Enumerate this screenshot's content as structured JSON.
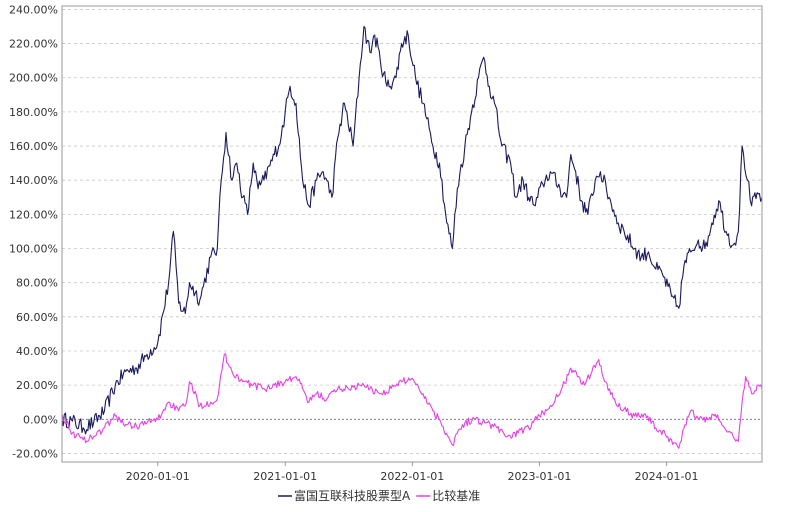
{
  "chart_data": {
    "type": "line",
    "title": "",
    "xlabel": "",
    "ylabel": "",
    "x_range": [
      "2019-04-01",
      "2024-10-01"
    ],
    "ylim": [
      -25,
      242
    ],
    "y_ticks": [
      "-20.00%",
      "0.00%",
      "20.00%",
      "40.00%",
      "60.00%",
      "80.00%",
      "100.00%",
      "120.00%",
      "140.00%",
      "160.00%",
      "180.00%",
      "200.00%",
      "220.00%",
      "240.00%"
    ],
    "x_ticks": [
      "2020-01-01",
      "2021-01-01",
      "2022-01-01",
      "2023-01-01",
      "2024-01-01"
    ],
    "grid": true,
    "legend_position": "bottom-center",
    "series": [
      {
        "name": "富国互联科技股票型A",
        "color": "#1a1a5e",
        "points": [
          [
            "2019-04-01",
            0
          ],
          [
            "2019-05-01",
            -1
          ],
          [
            "2019-06-01",
            -5
          ],
          [
            "2019-07-01",
            -2
          ],
          [
            "2019-08-01",
            5
          ],
          [
            "2019-09-01",
            20
          ],
          [
            "2019-10-01",
            28
          ],
          [
            "2019-11-01",
            30
          ],
          [
            "2019-12-01",
            38
          ],
          [
            "2020-01-01",
            45
          ],
          [
            "2020-02-01",
            80
          ],
          [
            "2020-02-15",
            110
          ],
          [
            "2020-03-01",
            68
          ],
          [
            "2020-03-20",
            62
          ],
          [
            "2020-04-01",
            80
          ],
          [
            "2020-05-01",
            70
          ],
          [
            "2020-06-01",
            95
          ],
          [
            "2020-06-20",
            100
          ],
          [
            "2020-07-01",
            140
          ],
          [
            "2020-07-15",
            168
          ],
          [
            "2020-08-01",
            140
          ],
          [
            "2020-08-15",
            150
          ],
          [
            "2020-09-01",
            130
          ],
          [
            "2020-09-15",
            120
          ],
          [
            "2020-10-01",
            150
          ],
          [
            "2020-10-15",
            135
          ],
          [
            "2020-11-01",
            140
          ],
          [
            "2020-12-01",
            155
          ],
          [
            "2020-12-20",
            165
          ],
          [
            "2021-01-01",
            180
          ],
          [
            "2021-01-15",
            195
          ],
          [
            "2021-02-01",
            185
          ],
          [
            "2021-02-20",
            140
          ],
          [
            "2021-03-10",
            125
          ],
          [
            "2021-04-01",
            140
          ],
          [
            "2021-04-20",
            145
          ],
          [
            "2021-05-15",
            130
          ],
          [
            "2021-06-01",
            165
          ],
          [
            "2021-06-20",
            185
          ],
          [
            "2021-07-15",
            160
          ],
          [
            "2021-08-01",
            200
          ],
          [
            "2021-08-15",
            230
          ],
          [
            "2021-09-01",
            215
          ],
          [
            "2021-09-15",
            225
          ],
          [
            "2021-10-01",
            210
          ],
          [
            "2021-10-20",
            195
          ],
          [
            "2021-11-15",
            200
          ],
          [
            "2021-12-01",
            220
          ],
          [
            "2021-12-20",
            225
          ],
          [
            "2022-01-10",
            200
          ],
          [
            "2022-02-01",
            185
          ],
          [
            "2022-03-01",
            160
          ],
          [
            "2022-03-20",
            150
          ],
          [
            "2022-04-10",
            115
          ],
          [
            "2022-04-26",
            100
          ],
          [
            "2022-05-10",
            135
          ],
          [
            "2022-06-01",
            160
          ],
          [
            "2022-06-20",
            180
          ],
          [
            "2022-07-10",
            200
          ],
          [
            "2022-07-25",
            212
          ],
          [
            "2022-08-10",
            195
          ],
          [
            "2022-08-25",
            185
          ],
          [
            "2022-09-15",
            160
          ],
          [
            "2022-10-10",
            150
          ],
          [
            "2022-10-25",
            130
          ],
          [
            "2022-11-15",
            140
          ],
          [
            "2022-12-01",
            130
          ],
          [
            "2022-12-20",
            125
          ],
          [
            "2023-01-10",
            138
          ],
          [
            "2023-02-01",
            145
          ],
          [
            "2023-03-01",
            135
          ],
          [
            "2023-03-20",
            130
          ],
          [
            "2023-04-01",
            155
          ],
          [
            "2023-04-15",
            145
          ],
          [
            "2023-05-01",
            128
          ],
          [
            "2023-05-20",
            120
          ],
          [
            "2023-06-10",
            140
          ],
          [
            "2023-06-25",
            145
          ],
          [
            "2023-07-20",
            130
          ],
          [
            "2023-08-15",
            115
          ],
          [
            "2023-09-01",
            110
          ],
          [
            "2023-10-01",
            100
          ],
          [
            "2023-10-20",
            95
          ],
          [
            "2023-11-10",
            98
          ],
          [
            "2023-12-01",
            88
          ],
          [
            "2023-12-20",
            85
          ],
          [
            "2024-01-15",
            72
          ],
          [
            "2024-02-05",
            65
          ],
          [
            "2024-02-20",
            90
          ],
          [
            "2024-03-10",
            98
          ],
          [
            "2024-04-01",
            105
          ],
          [
            "2024-04-20",
            100
          ],
          [
            "2024-05-10",
            115
          ],
          [
            "2024-05-30",
            128
          ],
          [
            "2024-06-20",
            110
          ],
          [
            "2024-07-10",
            102
          ],
          [
            "2024-07-25",
            110
          ],
          [
            "2024-08-05",
            160
          ],
          [
            "2024-08-20",
            140
          ],
          [
            "2024-09-01",
            125
          ],
          [
            "2024-09-20",
            132
          ],
          [
            "2024-10-01",
            130
          ]
        ]
      },
      {
        "name": "比较基准",
        "color": "#e83ee8",
        "points": [
          [
            "2019-04-01",
            3
          ],
          [
            "2019-05-01",
            -8
          ],
          [
            "2019-06-01",
            -12
          ],
          [
            "2019-07-01",
            -10
          ],
          [
            "2019-08-01",
            -5
          ],
          [
            "2019-09-01",
            2
          ],
          [
            "2019-10-01",
            -3
          ],
          [
            "2019-11-01",
            -4
          ],
          [
            "2019-12-01",
            -2
          ],
          [
            "2020-01-01",
            0
          ],
          [
            "2020-02-01",
            10
          ],
          [
            "2020-03-01",
            5
          ],
          [
            "2020-03-20",
            8
          ],
          [
            "2020-04-01",
            22
          ],
          [
            "2020-05-01",
            8
          ],
          [
            "2020-06-01",
            10
          ],
          [
            "2020-06-20",
            12
          ],
          [
            "2020-07-10",
            38
          ],
          [
            "2020-08-01",
            28
          ],
          [
            "2020-09-01",
            22
          ],
          [
            "2020-10-01",
            20
          ],
          [
            "2020-11-01",
            18
          ],
          [
            "2020-12-01",
            20
          ],
          [
            "2021-01-01",
            22
          ],
          [
            "2021-02-01",
            25
          ],
          [
            "2021-02-20",
            18
          ],
          [
            "2021-03-10",
            10
          ],
          [
            "2021-04-01",
            15
          ],
          [
            "2021-05-01",
            12
          ],
          [
            "2021-06-01",
            18
          ],
          [
            "2021-07-01",
            18
          ],
          [
            "2021-08-01",
            20
          ],
          [
            "2021-09-01",
            18
          ],
          [
            "2021-10-01",
            15
          ],
          [
            "2021-11-01",
            18
          ],
          [
            "2021-12-01",
            22
          ],
          [
            "2022-01-01",
            24
          ],
          [
            "2022-02-01",
            15
          ],
          [
            "2022-03-01",
            5
          ],
          [
            "2022-03-20",
            0
          ],
          [
            "2022-04-26",
            -15
          ],
          [
            "2022-05-10",
            -8
          ],
          [
            "2022-06-01",
            -2
          ],
          [
            "2022-07-01",
            0
          ],
          [
            "2022-08-01",
            -2
          ],
          [
            "2022-09-01",
            -5
          ],
          [
            "2022-10-01",
            -10
          ],
          [
            "2022-11-01",
            -8
          ],
          [
            "2022-12-01",
            -5
          ],
          [
            "2023-01-01",
            2
          ],
          [
            "2023-02-01",
            8
          ],
          [
            "2023-03-01",
            15
          ],
          [
            "2023-04-01",
            30
          ],
          [
            "2023-04-20",
            25
          ],
          [
            "2023-05-10",
            20
          ],
          [
            "2023-06-01",
            28
          ],
          [
            "2023-06-20",
            35
          ],
          [
            "2023-07-10",
            22
          ],
          [
            "2023-08-01",
            12
          ],
          [
            "2023-09-01",
            6
          ],
          [
            "2023-10-01",
            2
          ],
          [
            "2023-11-01",
            3
          ],
          [
            "2023-12-01",
            -5
          ],
          [
            "2024-01-15",
            -12
          ],
          [
            "2024-02-05",
            -17
          ],
          [
            "2024-02-20",
            -5
          ],
          [
            "2024-03-10",
            5
          ],
          [
            "2024-04-01",
            0
          ],
          [
            "2024-05-01",
            0
          ],
          [
            "2024-05-20",
            3
          ],
          [
            "2024-06-15",
            -5
          ],
          [
            "2024-07-10",
            -10
          ],
          [
            "2024-07-25",
            -13
          ],
          [
            "2024-08-05",
            10
          ],
          [
            "2024-08-15",
            25
          ],
          [
            "2024-09-01",
            15
          ],
          [
            "2024-09-20",
            20
          ],
          [
            "2024-10-01",
            18
          ]
        ]
      }
    ]
  }
}
